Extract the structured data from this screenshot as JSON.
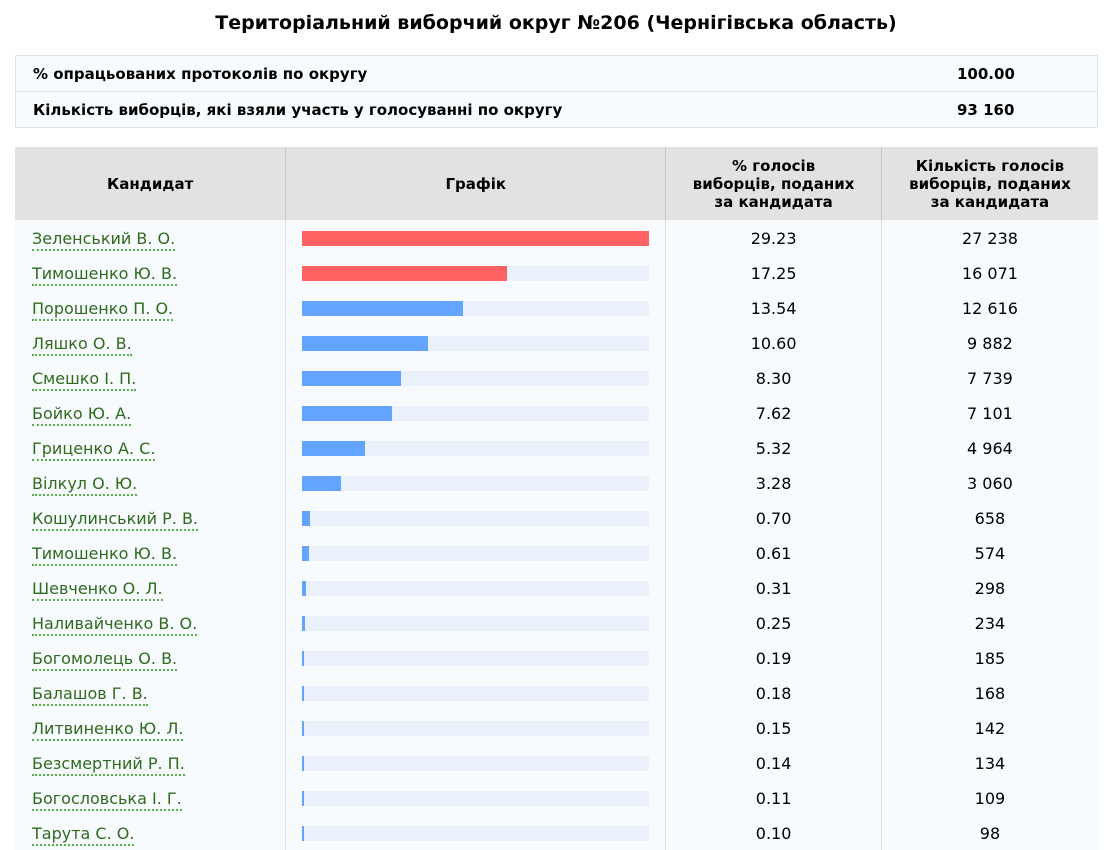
{
  "title": "Територіальний виборчий округ №206 (Чернігівська область)",
  "summary": [
    {
      "label": "% опрацьованих протоколів по округу",
      "value": "100.00"
    },
    {
      "label": "Кількість виборців, які взяли участь у голосуванні по округу",
      "value": "93 160"
    }
  ],
  "table": {
    "headers": {
      "candidate": "Кандидат",
      "graph": "Графік",
      "pct_line1": "% голосів",
      "pct_line2": "виборців, поданих",
      "pct_line3": "за кандидата",
      "votes_line1": "Кількість голосів",
      "votes_line2": "виборців, поданих",
      "votes_line3": "за кандидата"
    },
    "rows": [
      {
        "candidate": "Зеленський В. О.",
        "pct": "29.23",
        "votes": "27 238",
        "pct_value": 29.23,
        "highlight": true
      },
      {
        "candidate": "Тимошенко Ю. В.",
        "pct": "17.25",
        "votes": "16 071",
        "pct_value": 17.25,
        "highlight": true
      },
      {
        "candidate": "Порошенко П. О.",
        "pct": "13.54",
        "votes": "12 616",
        "pct_value": 13.54,
        "highlight": false
      },
      {
        "candidate": "Ляшко О. В.",
        "pct": "10.60",
        "votes": "9 882",
        "pct_value": 10.6,
        "highlight": false
      },
      {
        "candidate": "Смешко І. П.",
        "pct": "8.30",
        "votes": "7 739",
        "pct_value": 8.3,
        "highlight": false
      },
      {
        "candidate": "Бойко Ю. А.",
        "pct": "7.62",
        "votes": "7 101",
        "pct_value": 7.62,
        "highlight": false
      },
      {
        "candidate": "Гриценко А. С.",
        "pct": "5.32",
        "votes": "4 964",
        "pct_value": 5.32,
        "highlight": false
      },
      {
        "candidate": "Вілкул О. Ю.",
        "pct": "3.28",
        "votes": "3 060",
        "pct_value": 3.28,
        "highlight": false
      },
      {
        "candidate": "Кошулинський Р. В.",
        "pct": "0.70",
        "votes": "658",
        "pct_value": 0.7,
        "highlight": false
      },
      {
        "candidate": "Тимошенко Ю. В.",
        "pct": "0.61",
        "votes": "574",
        "pct_value": 0.61,
        "highlight": false
      },
      {
        "candidate": "Шевченко О. Л.",
        "pct": "0.31",
        "votes": "298",
        "pct_value": 0.31,
        "highlight": false
      },
      {
        "candidate": "Наливайченко В. О.",
        "pct": "0.25",
        "votes": "234",
        "pct_value": 0.25,
        "highlight": false
      },
      {
        "candidate": "Богомолець О. В.",
        "pct": "0.19",
        "votes": "185",
        "pct_value": 0.19,
        "highlight": false
      },
      {
        "candidate": "Балашов Г. В.",
        "pct": "0.18",
        "votes": "168",
        "pct_value": 0.18,
        "highlight": false
      },
      {
        "candidate": "Литвиненко Ю. Л.",
        "pct": "0.15",
        "votes": "142",
        "pct_value": 0.15,
        "highlight": false
      },
      {
        "candidate": "Безсмертний Р. П.",
        "pct": "0.14",
        "votes": "134",
        "pct_value": 0.14,
        "highlight": false
      },
      {
        "candidate": "Богословська І. Г.",
        "pct": "0.11",
        "votes": "109",
        "pct_value": 0.11,
        "highlight": false
      },
      {
        "candidate": "Тарута С. О.",
        "pct": "0.10",
        "votes": "98",
        "pct_value": 0.1,
        "highlight": false
      }
    ]
  },
  "colors": {
    "bar_highlight": "#ff6262",
    "bar_normal": "#63a4ff",
    "bar_track": "#ebf1fb",
    "link": "#2f6a1e",
    "link_underline": "#59b049",
    "header_bg": "#e2e2e2"
  }
}
